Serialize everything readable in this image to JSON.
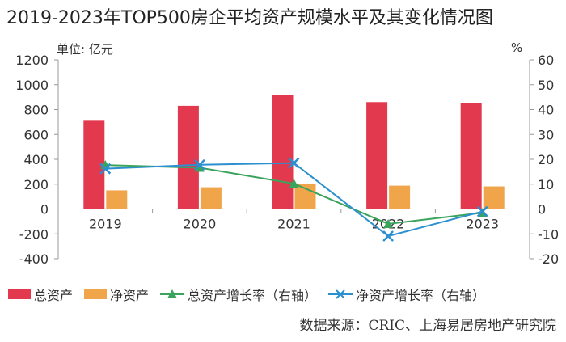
{
  "title": "2019-2023年TOP500房企平均资产规模水平及其变化情况图",
  "unit_left": "单位: 亿元",
  "unit_right": "%",
  "source": "数据来源：CRIC、上海易居房地产研究院",
  "colors": {
    "total_assets": "#e2394f",
    "net_assets": "#f0a54b",
    "total_growth": "#3aa35c",
    "net_growth": "#2b8fd0",
    "axis": "#999999",
    "text": "#333333"
  },
  "legend": [
    {
      "label": "总资产",
      "kind": "bar",
      "color": "#e2394f"
    },
    {
      "label": "净资产",
      "kind": "bar",
      "color": "#f0a54b"
    },
    {
      "label": "总资产增长率（右轴）",
      "kind": "line-triangle",
      "color": "#3aa35c"
    },
    {
      "label": "净资产增长率（右轴）",
      "kind": "line-x",
      "color": "#2b8fd0"
    }
  ],
  "chart_data": {
    "type": "bar",
    "categories": [
      "2019",
      "2020",
      "2021",
      "2022",
      "2023"
    ],
    "series": [
      {
        "name": "总资产",
        "type": "bar",
        "axis": "left",
        "values": [
          710,
          830,
          915,
          860,
          850
        ]
      },
      {
        "name": "净资产",
        "type": "bar",
        "axis": "left",
        "values": [
          150,
          175,
          205,
          188,
          182
        ]
      },
      {
        "name": "总资产增长率（右轴）",
        "type": "line",
        "marker": "triangle",
        "axis": "right",
        "values": [
          17.7,
          16.6,
          10.2,
          -6.0,
          -1.5
        ]
      },
      {
        "name": "净资产增长率（右轴）",
        "type": "line",
        "marker": "x",
        "axis": "right",
        "values": [
          16.2,
          17.8,
          18.5,
          -10.9,
          -1.0
        ]
      }
    ],
    "y_left": {
      "min": -400,
      "max": 1200,
      "ticks": [
        -400,
        -200,
        0,
        200,
        400,
        600,
        800,
        1000,
        1200
      ],
      "label": "单位: 亿元"
    },
    "y_right": {
      "min": -20,
      "max": 60,
      "ticks": [
        -20,
        -10,
        0,
        10,
        20,
        30,
        40,
        50,
        60
      ],
      "label": "%"
    },
    "legend_position": "bottom",
    "grid": false
  }
}
